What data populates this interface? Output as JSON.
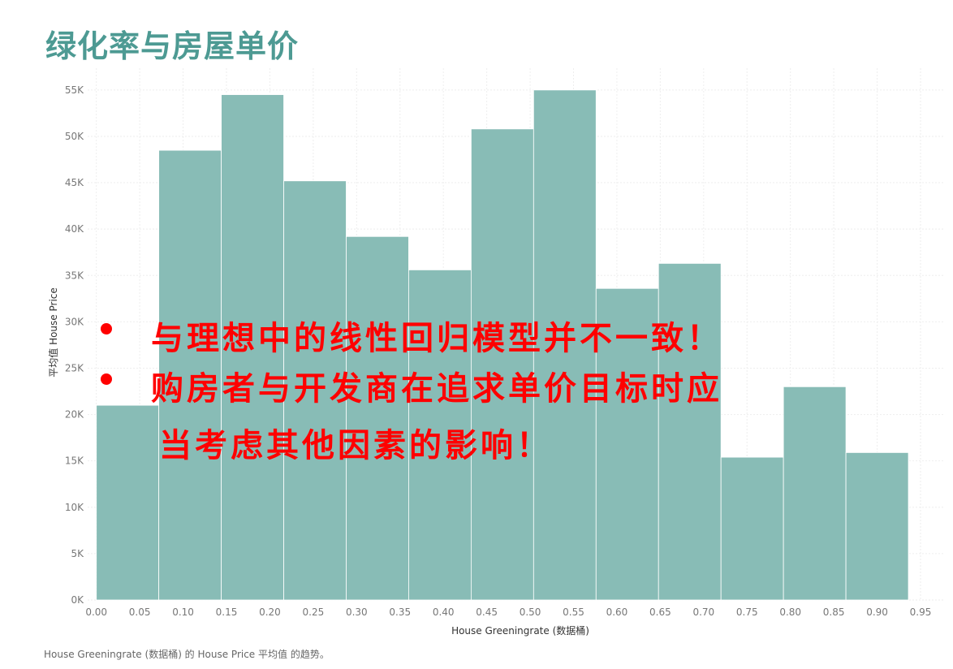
{
  "title": "绿化率与房屋单价",
  "caption": "House Greeningrate (数据桶) 的 House Price 平均值 的趋势。",
  "annotations": [
    "与理想中的线性回归模型并不一致！",
    "购房者与开发商在追求单价目标时应",
    "当考虑其他因素的影响！"
  ],
  "colors": {
    "bar": "#88bcb6",
    "title": "#4d9a93",
    "annotation": "#ff0000"
  },
  "chart_data": {
    "type": "bar",
    "title": "",
    "xlabel": "House Greeningrate (数据桶)",
    "ylabel": "平均值 House Price",
    "xlim": [
      -0.01,
      0.95
    ],
    "ylim": [
      0,
      57000
    ],
    "bin_width": 0.072,
    "x_ticks": [
      "0.00",
      "0.05",
      "0.10",
      "0.15",
      "0.20",
      "0.25",
      "0.30",
      "0.35",
      "0.40",
      "0.45",
      "0.50",
      "0.55",
      "0.60",
      "0.65",
      "0.70",
      "0.75",
      "0.80",
      "0.85",
      "0.90",
      "0.95"
    ],
    "y_ticks": [
      "0K",
      "5K",
      "10K",
      "15K",
      "20K",
      "25K",
      "30K",
      "35K",
      "40K",
      "45K",
      "50K",
      "55K"
    ],
    "bins": [
      {
        "x": 0.0,
        "value": 21000
      },
      {
        "x": 0.072,
        "value": 48500
      },
      {
        "x": 0.144,
        "value": 54500
      },
      {
        "x": 0.216,
        "value": 45200
      },
      {
        "x": 0.288,
        "value": 39200
      },
      {
        "x": 0.36,
        "value": 35600
      },
      {
        "x": 0.432,
        "value": 50800
      },
      {
        "x": 0.504,
        "value": 55000
      },
      {
        "x": 0.576,
        "value": 33600
      },
      {
        "x": 0.648,
        "value": 36300
      },
      {
        "x": 0.72,
        "value": 15400
      },
      {
        "x": 0.792,
        "value": 23000
      },
      {
        "x": 0.864,
        "value": 15900
      }
    ],
    "grid": true
  }
}
